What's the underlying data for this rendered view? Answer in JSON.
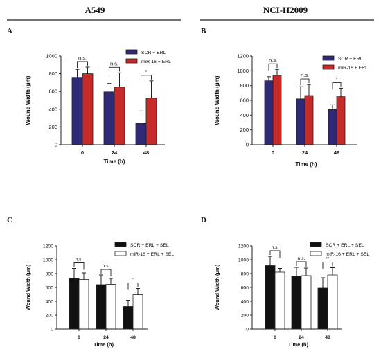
{
  "columns": [
    {
      "title": "A549"
    },
    {
      "title": "NCI-H2009"
    }
  ],
  "chart_data": [
    {
      "panel": "A",
      "type": "bar",
      "xlabel": "Time (h)",
      "ylabel": "Wound Width (μm)",
      "ylim": [
        0,
        1000
      ],
      "yticks": [
        0,
        200,
        400,
        600,
        800,
        1000
      ],
      "categories": [
        "0",
        "24",
        "48"
      ],
      "series": [
        {
          "name": "SCR + ERL",
          "color": "#2e2a78",
          "values": [
            760,
            595,
            240
          ],
          "errors": [
            90,
            95,
            140
          ]
        },
        {
          "name": "miR-16 + ERL",
          "color": "#c62a29",
          "values": [
            800,
            650,
            525
          ],
          "errors": [
            75,
            160,
            195
          ]
        }
      ],
      "significance": [
        "n.s.",
        "n.s.",
        "*"
      ]
    },
    {
      "panel": "B",
      "type": "bar",
      "xlabel": "Time (h)",
      "ylabel": "Wound Width (μm)",
      "ylim": [
        0,
        1200
      ],
      "yticks": [
        0,
        200,
        400,
        600,
        800,
        1000,
        1200
      ],
      "categories": [
        "0",
        "24",
        "48"
      ],
      "series": [
        {
          "name": "SCR + ERL",
          "color": "#2e2a78",
          "values": [
            865,
            620,
            475
          ],
          "errors": [
            55,
            165,
            65
          ]
        },
        {
          "name": "miR-16 + ERL",
          "color": "#c62a29",
          "values": [
            940,
            665,
            650
          ],
          "errors": [
            80,
            150,
            115
          ]
        }
      ],
      "significance": [
        "n.s.",
        "n.s.",
        "*"
      ]
    },
    {
      "panel": "C",
      "type": "bar",
      "xlabel": "Time (h)",
      "ylabel": "Wound Width (μm)",
      "ylim": [
        0,
        1200
      ],
      "yticks": [
        0,
        200,
        400,
        600,
        800,
        1000,
        1200
      ],
      "categories": [
        "0",
        "24",
        "48"
      ],
      "series": [
        {
          "name": "SCR + ERL + SEL",
          "color": "#111111",
          "values": [
            730,
            640,
            325
          ],
          "errors": [
            145,
            140,
            90
          ]
        },
        {
          "name": "miR-16 + ERL + SEL",
          "color": "#ffffff",
          "values": [
            715,
            645,
            495
          ],
          "errors": [
            95,
            85,
            90
          ]
        }
      ],
      "significance": [
        "n.s.",
        "n.s.",
        "**"
      ]
    },
    {
      "panel": "D",
      "type": "bar",
      "xlabel": "Time (h)",
      "ylabel": "Wound Width (μm)",
      "ylim": [
        0,
        1200
      ],
      "yticks": [
        0,
        200,
        400,
        600,
        800,
        1000,
        1200
      ],
      "categories": [
        "0",
        "24",
        "48"
      ],
      "series": [
        {
          "name": "SCR + ERL + SEL",
          "color": "#111111",
          "values": [
            915,
            760,
            590
          ],
          "errors": [
            135,
            130,
            150
          ]
        },
        {
          "name": "miR-16 + ERL + SEL",
          "color": "#ffffff",
          "values": [
            820,
            770,
            780
          ],
          "errors": [
            55,
            110,
            105
          ]
        }
      ],
      "significance": [
        "n.s.",
        "n.s.",
        "**"
      ]
    }
  ]
}
